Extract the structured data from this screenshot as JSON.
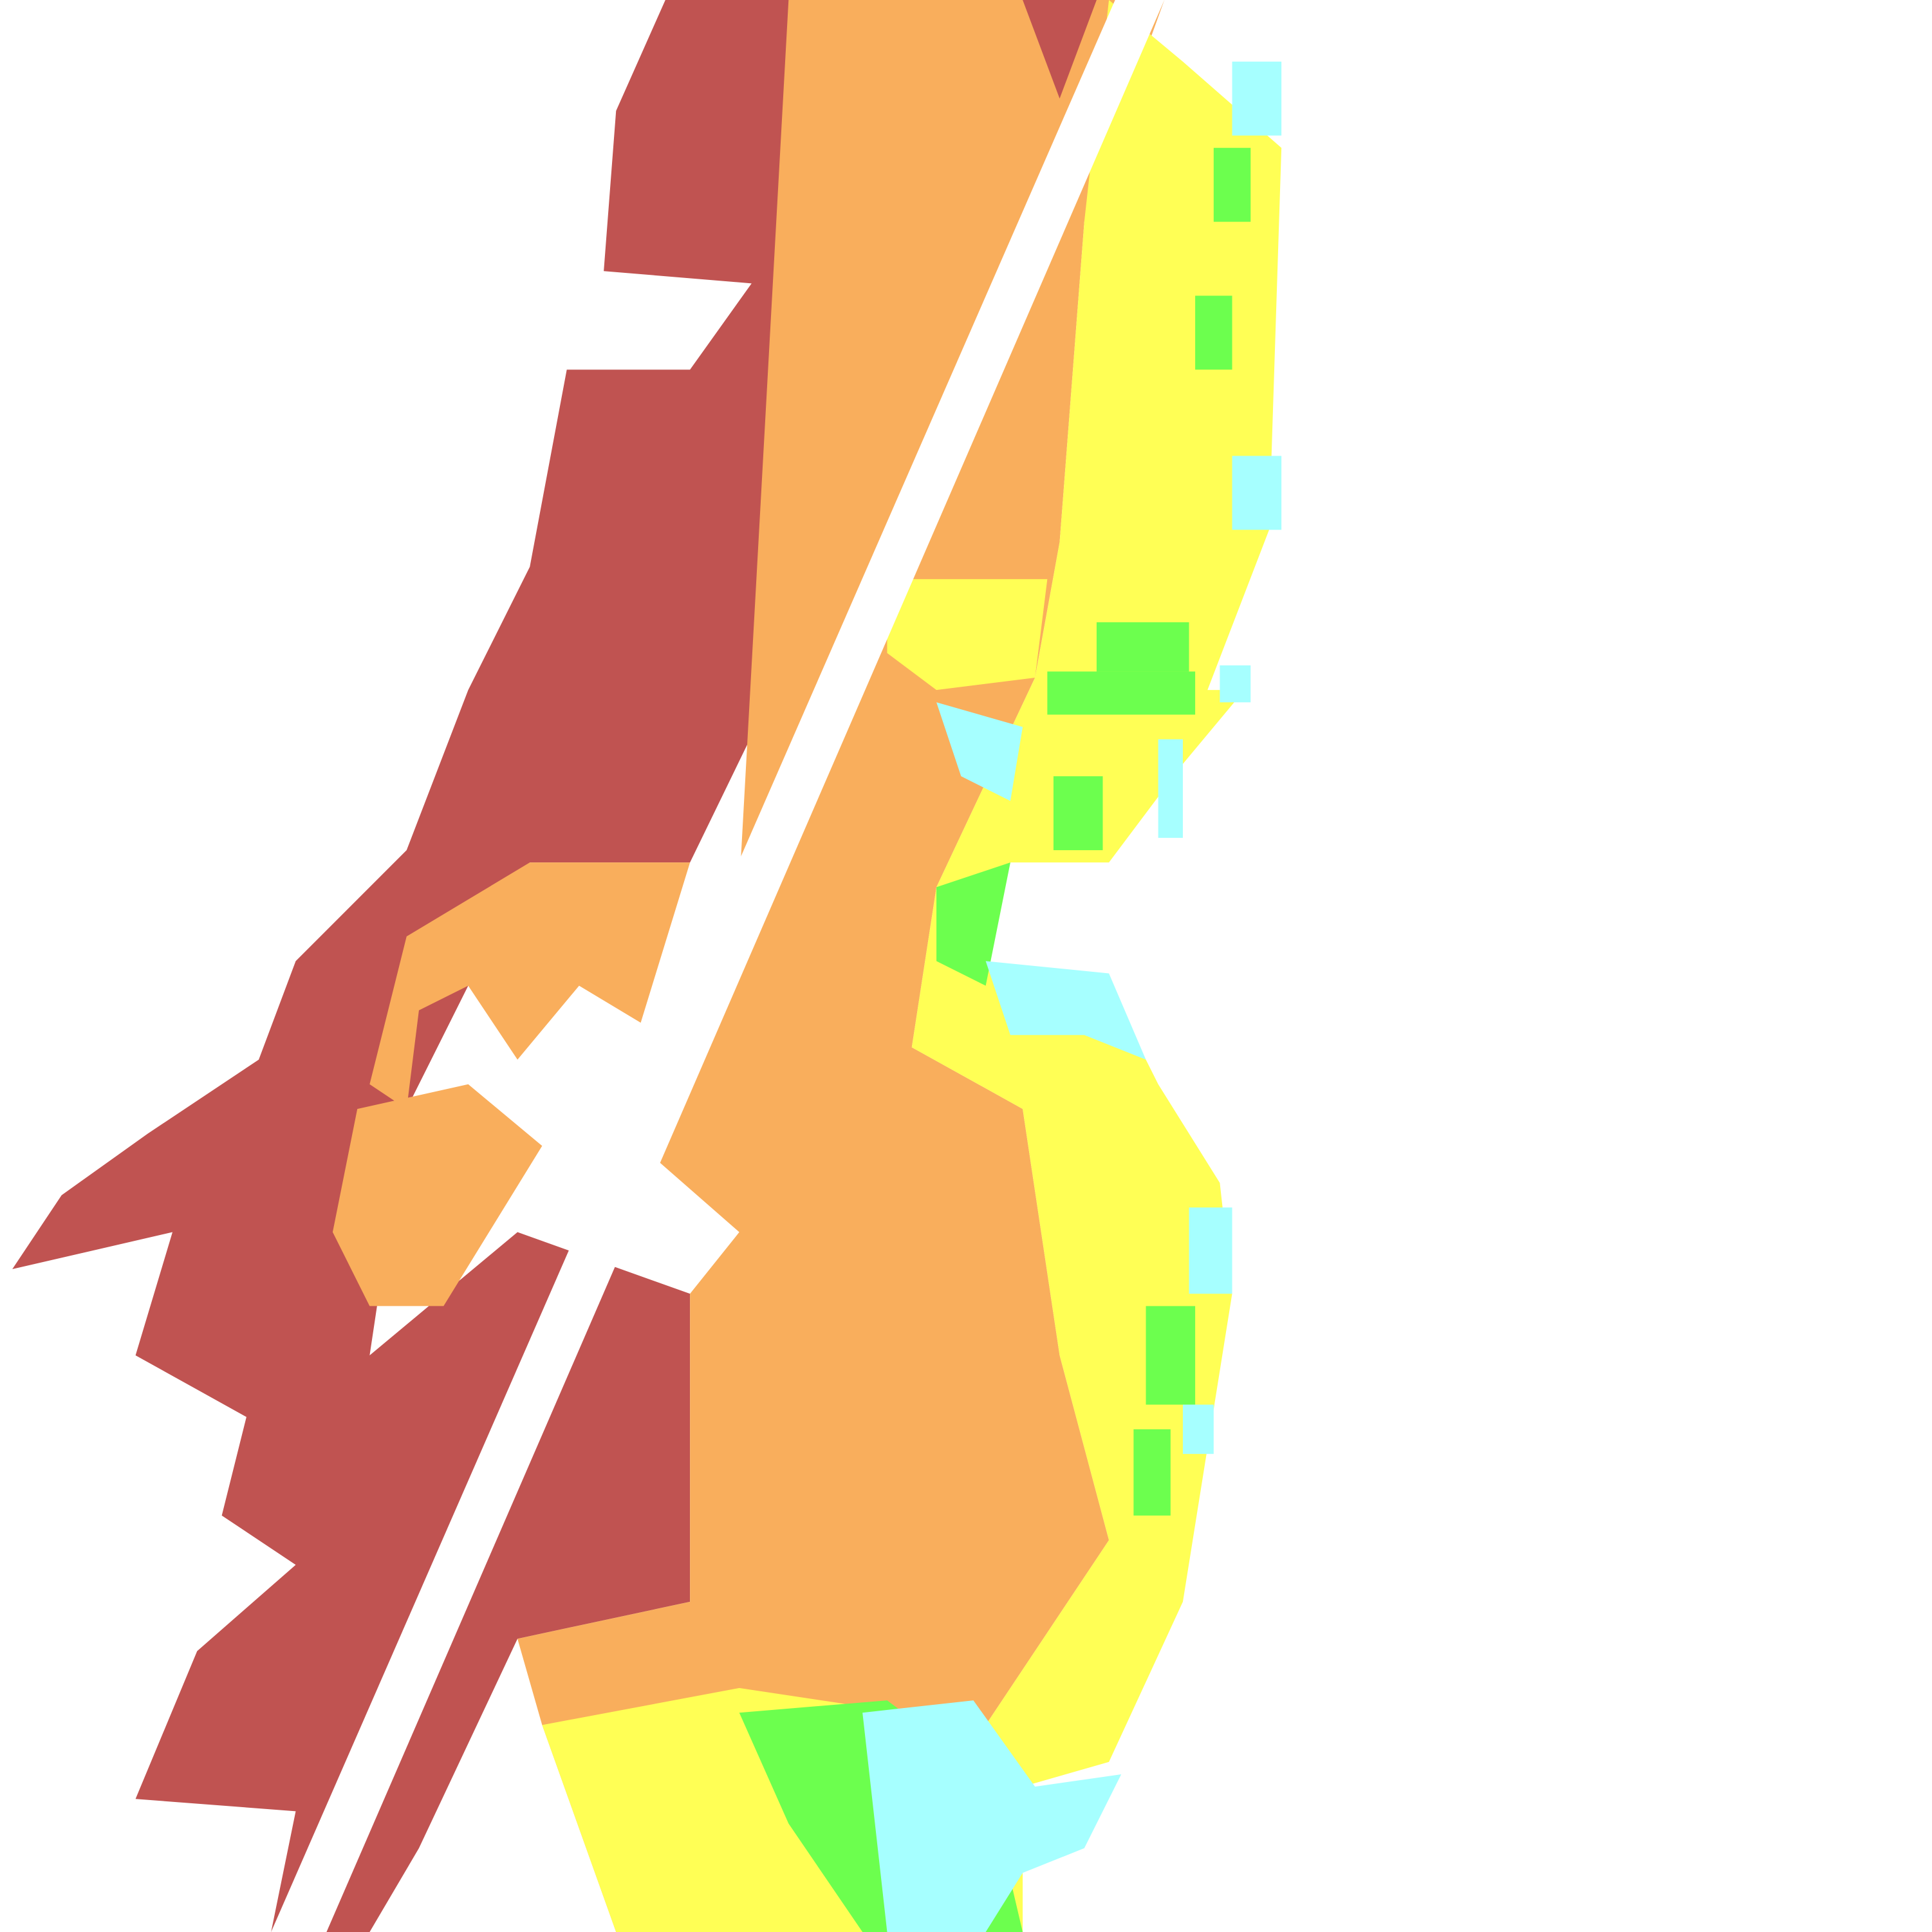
{
  "map": {
    "background": "#ffffff",
    "classes": [
      {
        "id": "class-1",
        "color": "#c05351"
      },
      {
        "id": "class-2",
        "color": "#f9ae5c"
      },
      {
        "id": "class-3",
        "color": "#ffff55"
      },
      {
        "id": "class-4",
        "color": "#6cff4e"
      },
      {
        "id": "class-5",
        "color": "#a6ffff"
      }
    ]
  }
}
